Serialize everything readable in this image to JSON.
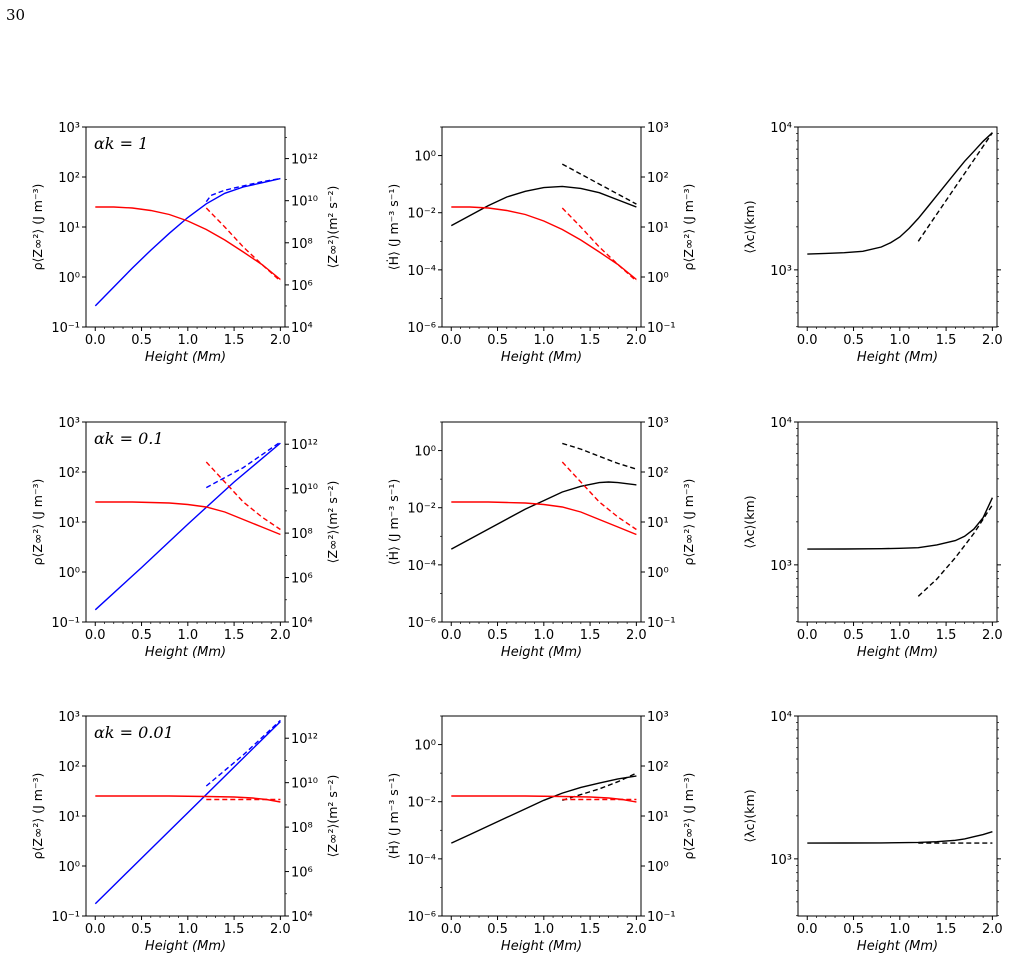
{
  "page_number": "30",
  "chart_data": [
    {
      "panel": "row1-left",
      "type": "line",
      "xlabel": "Height (Mm)",
      "ylabel": "ρ⟨Z∞²⟩ (J m⁻³)",
      "y2label": "⟨Z∞²⟩(m² s⁻²)",
      "xlim": [
        -0.1,
        2.05
      ],
      "ylim": [
        -1,
        3
      ],
      "y2lim": [
        4,
        13.5
      ],
      "log_y": true,
      "log_y2": true,
      "annotation": "αk = 1",
      "series": [
        {
          "color": "#0000ff",
          "dash": "solid",
          "axis": "right",
          "x": [
            0,
            0.2,
            0.4,
            0.6,
            0.8,
            1.0,
            1.2,
            1.4,
            1.6,
            1.8,
            2.0
          ],
          "y": [
            5.0,
            5.9,
            6.8,
            7.65,
            8.45,
            9.2,
            9.85,
            10.35,
            10.65,
            10.85,
            11.05
          ]
        },
        {
          "color": "#0000ff",
          "dash": "dashed",
          "axis": "right",
          "x": [
            1.2,
            1.25,
            1.4,
            1.6,
            1.8,
            2.0
          ],
          "y": [
            9.95,
            10.25,
            10.5,
            10.7,
            10.9,
            11.05
          ]
        },
        {
          "color": "#ff0000",
          "dash": "solid",
          "axis": "left",
          "x": [
            0,
            0.2,
            0.4,
            0.6,
            0.8,
            1.0,
            1.2,
            1.4,
            1.6,
            1.8,
            2.0
          ],
          "y": [
            1.4,
            1.4,
            1.38,
            1.33,
            1.25,
            1.12,
            0.95,
            0.74,
            0.5,
            0.25,
            -0.05
          ]
        },
        {
          "color": "#ff0000",
          "dash": "dashed",
          "axis": "left",
          "x": [
            1.2,
            1.4,
            1.6,
            1.8,
            2.0
          ],
          "y": [
            1.38,
            1.0,
            0.6,
            0.25,
            -0.08
          ]
        }
      ]
    },
    {
      "panel": "row1-mid",
      "type": "line",
      "xlabel": "Height (Mm)",
      "ylabel": "⟨Ḣ⟩ (J m⁻³ s⁻¹)",
      "y2label": "ρ⟨Z∞²⟩ (J m⁻³)",
      "xlim": [
        -0.1,
        2.05
      ],
      "ylim": [
        -6,
        1
      ],
      "y2lim": [
        -1,
        3
      ],
      "log_y": true,
      "log_y2": true,
      "series": [
        {
          "color": "#000000",
          "dash": "solid",
          "axis": "left",
          "x": [
            0,
            0.2,
            0.4,
            0.6,
            0.8,
            1.0,
            1.2,
            1.4,
            1.6,
            1.8,
            2.0
          ],
          "y": [
            -2.45,
            -2.1,
            -1.75,
            -1.45,
            -1.25,
            -1.12,
            -1.08,
            -1.15,
            -1.3,
            -1.55,
            -1.8
          ]
        },
        {
          "color": "#000000",
          "dash": "dashed",
          "axis": "left",
          "x": [
            1.2,
            1.4,
            1.6,
            1.8,
            2.0
          ],
          "y": [
            -0.3,
            -0.65,
            -1.0,
            -1.35,
            -1.7
          ]
        },
        {
          "color": "#ff0000",
          "dash": "solid",
          "axis": "right",
          "x": [
            0,
            0.2,
            0.4,
            0.6,
            0.8,
            1.0,
            1.2,
            1.4,
            1.6,
            1.8,
            2.0
          ],
          "y": [
            1.4,
            1.4,
            1.38,
            1.33,
            1.25,
            1.12,
            0.95,
            0.74,
            0.5,
            0.25,
            -0.05
          ]
        },
        {
          "color": "#ff0000",
          "dash": "dashed",
          "axis": "right",
          "x": [
            1.2,
            1.4,
            1.6,
            1.8,
            2.0
          ],
          "y": [
            1.38,
            1.0,
            0.6,
            0.25,
            -0.08
          ]
        }
      ]
    },
    {
      "panel": "row1-right",
      "type": "line",
      "xlabel": "Height (Mm)",
      "ylabel": "⟨λc⟩(km)",
      "xlim": [
        -0.1,
        2.05
      ],
      "ylim": [
        2.6,
        4
      ],
      "log_y": true,
      "series": [
        {
          "color": "#000000",
          "dash": "solid",
          "axis": "left",
          "x": [
            0,
            0.2,
            0.4,
            0.6,
            0.8,
            0.9,
            1.0,
            1.1,
            1.2,
            1.3,
            1.4,
            1.5,
            1.6,
            1.7,
            1.8,
            1.9,
            2.0
          ],
          "y": [
            3.11,
            3.115,
            3.12,
            3.13,
            3.16,
            3.19,
            3.23,
            3.29,
            3.36,
            3.44,
            3.52,
            3.6,
            3.68,
            3.76,
            3.83,
            3.9,
            3.96
          ]
        },
        {
          "color": "#000000",
          "dash": "dashed",
          "axis": "left",
          "x": [
            1.2,
            1.4,
            1.6,
            1.8,
            2.0
          ],
          "y": [
            3.2,
            3.39,
            3.58,
            3.77,
            3.96
          ]
        }
      ]
    },
    {
      "panel": "row2-left",
      "type": "line",
      "xlabel": "Height (Mm)",
      "ylabel": "ρ⟨Z∞²⟩ (J m⁻³)",
      "y2label": "⟨Z∞²⟩(m² s⁻²)",
      "xlim": [
        -0.1,
        2.05
      ],
      "ylim": [
        -1,
        3
      ],
      "y2lim": [
        4,
        13
      ],
      "log_y": true,
      "log_y2": true,
      "annotation": "αk = 0.1",
      "series": [
        {
          "color": "#0000ff",
          "dash": "solid",
          "axis": "right",
          "x": [
            0,
            0.5,
            1.0,
            1.5,
            2.0
          ],
          "y": [
            4.55,
            6.45,
            8.4,
            10.3,
            12.05
          ]
        },
        {
          "color": "#0000ff",
          "dash": "dashed",
          "axis": "right",
          "x": [
            1.2,
            1.6,
            2.0
          ],
          "y": [
            10.05,
            10.95,
            12.1
          ]
        },
        {
          "color": "#ff0000",
          "dash": "solid",
          "axis": "left",
          "x": [
            0,
            0.2,
            0.4,
            0.6,
            0.8,
            1.0,
            1.2,
            1.4,
            1.6,
            1.8,
            2.0
          ],
          "y": [
            1.4,
            1.4,
            1.4,
            1.39,
            1.38,
            1.35,
            1.3,
            1.2,
            1.05,
            0.9,
            0.75
          ]
        },
        {
          "color": "#ff0000",
          "dash": "dashed",
          "axis": "left",
          "x": [
            1.2,
            1.4,
            1.6,
            1.8,
            2.0
          ],
          "y": [
            2.2,
            1.8,
            1.4,
            1.1,
            0.85
          ]
        }
      ]
    },
    {
      "panel": "row2-mid",
      "type": "line",
      "xlabel": "Height (Mm)",
      "ylabel": "⟨Ḣ⟩ (J m⁻³ s⁻¹)",
      "y2label": "ρ⟨Z∞²⟩ (J m⁻³)",
      "xlim": [
        -0.1,
        2.05
      ],
      "ylim": [
        -6,
        1
      ],
      "y2lim": [
        -1,
        3
      ],
      "log_y": true,
      "log_y2": true,
      "series": [
        {
          "color": "#000000",
          "dash": "solid",
          "axis": "left",
          "x": [
            0,
            0.2,
            0.4,
            0.6,
            0.8,
            1.0,
            1.2,
            1.4,
            1.6,
            1.7,
            1.8,
            2.0
          ],
          "y": [
            -3.45,
            -3.1,
            -2.75,
            -2.4,
            -2.05,
            -1.75,
            -1.45,
            -1.25,
            -1.12,
            -1.1,
            -1.12,
            -1.2
          ]
        },
        {
          "color": "#000000",
          "dash": "dashed",
          "axis": "left",
          "x": [
            1.2,
            1.4,
            1.6,
            1.8,
            2.0
          ],
          "y": [
            0.25,
            0.05,
            -0.2,
            -0.45,
            -0.65
          ]
        },
        {
          "color": "#ff0000",
          "dash": "solid",
          "axis": "right",
          "x": [
            0,
            0.2,
            0.4,
            0.6,
            0.8,
            1.0,
            1.2,
            1.4,
            1.6,
            1.8,
            2.0
          ],
          "y": [
            1.4,
            1.4,
            1.4,
            1.39,
            1.38,
            1.35,
            1.3,
            1.2,
            1.05,
            0.9,
            0.75
          ]
        },
        {
          "color": "#ff0000",
          "dash": "dashed",
          "axis": "right",
          "x": [
            1.2,
            1.4,
            1.6,
            1.8,
            2.0
          ],
          "y": [
            2.2,
            1.8,
            1.4,
            1.1,
            0.85
          ]
        }
      ]
    },
    {
      "panel": "row2-right",
      "type": "line",
      "xlabel": "Height (Mm)",
      "ylabel": "⟨λc⟩(km)",
      "xlim": [
        -0.1,
        2.05
      ],
      "ylim": [
        2.6,
        4
      ],
      "log_y": true,
      "series": [
        {
          "color": "#000000",
          "dash": "solid",
          "axis": "left",
          "x": [
            0,
            0.4,
            0.8,
            1.0,
            1.2,
            1.4,
            1.6,
            1.7,
            1.8,
            1.9,
            2.0
          ],
          "y": [
            3.11,
            3.111,
            3.113,
            3.116,
            3.12,
            3.14,
            3.17,
            3.2,
            3.25,
            3.33,
            3.47
          ]
        },
        {
          "color": "#000000",
          "dash": "dashed",
          "axis": "left",
          "x": [
            1.2,
            1.4,
            1.6,
            1.8,
            2.0
          ],
          "y": [
            2.78,
            2.9,
            3.05,
            3.22,
            3.42
          ]
        }
      ]
    },
    {
      "panel": "row3-left",
      "type": "line",
      "xlabel": "Height (Mm)",
      "ylabel": "ρ⟨Z∞²⟩ (J m⁻³)",
      "y2label": "⟨Z∞²⟩(m² s⁻²)",
      "xlim": [
        -0.1,
        2.05
      ],
      "ylim": [
        -1,
        3
      ],
      "y2lim": [
        4,
        13
      ],
      "log_y": true,
      "log_y2": true,
      "annotation": "αk = 0.01",
      "series": [
        {
          "color": "#0000ff",
          "dash": "solid",
          "axis": "right",
          "x": [
            0,
            0.5,
            1.0,
            1.5,
            2.0
          ],
          "y": [
            4.55,
            6.6,
            8.65,
            10.7,
            12.75
          ]
        },
        {
          "color": "#0000ff",
          "dash": "dashed",
          "axis": "right",
          "x": [
            1.2,
            1.6,
            2.0
          ],
          "y": [
            9.85,
            11.25,
            12.8
          ]
        },
        {
          "color": "#ff0000",
          "dash": "solid",
          "axis": "left",
          "x": [
            0,
            0.4,
            0.8,
            1.2,
            1.5,
            1.7,
            1.85,
            2.0
          ],
          "y": [
            1.4,
            1.4,
            1.4,
            1.39,
            1.38,
            1.36,
            1.33,
            1.28
          ]
        },
        {
          "color": "#ff0000",
          "dash": "dashed",
          "axis": "left",
          "x": [
            1.2,
            1.4,
            1.6,
            1.8,
            2.0
          ],
          "y": [
            1.33,
            1.33,
            1.33,
            1.33,
            1.33
          ]
        }
      ]
    },
    {
      "panel": "row3-mid",
      "type": "line",
      "xlabel": "Height (Mm)",
      "ylabel": "⟨Ḣ⟩ (J m⁻³ s⁻¹)",
      "y2label": "ρ⟨Z∞²⟩ (J m⁻³)",
      "xlim": [
        -0.1,
        2.05
      ],
      "ylim": [
        -6,
        1
      ],
      "y2lim": [
        -1,
        3
      ],
      "log_y": true,
      "log_y2": true,
      "series": [
        {
          "color": "#000000",
          "dash": "solid",
          "axis": "left",
          "x": [
            0,
            0.2,
            0.4,
            0.6,
            0.8,
            1.0,
            1.2,
            1.4,
            1.6,
            1.8,
            2.0
          ],
          "y": [
            -3.45,
            -3.15,
            -2.85,
            -2.55,
            -2.25,
            -1.95,
            -1.7,
            -1.5,
            -1.35,
            -1.2,
            -1.1
          ]
        },
        {
          "color": "#000000",
          "dash": "dashed",
          "axis": "left",
          "x": [
            1.2,
            1.4,
            1.6,
            1.8,
            2.0
          ],
          "y": [
            -1.95,
            -1.75,
            -1.55,
            -1.3,
            -1.0
          ]
        },
        {
          "color": "#ff0000",
          "dash": "solid",
          "axis": "right",
          "x": [
            0,
            0.4,
            0.8,
            1.2,
            1.5,
            1.7,
            1.85,
            2.0
          ],
          "y": [
            1.4,
            1.4,
            1.4,
            1.39,
            1.38,
            1.36,
            1.33,
            1.28
          ]
        },
        {
          "color": "#ff0000",
          "dash": "dashed",
          "axis": "right",
          "x": [
            1.2,
            1.4,
            1.6,
            1.8,
            2.0
          ],
          "y": [
            1.33,
            1.33,
            1.33,
            1.33,
            1.33
          ]
        }
      ]
    },
    {
      "panel": "row3-right",
      "type": "line",
      "xlabel": "Height (Mm)",
      "ylabel": "⟨λc⟩(km)",
      "xlim": [
        -0.1,
        2.05
      ],
      "ylim": [
        2.6,
        4
      ],
      "log_y": true,
      "series": [
        {
          "color": "#000000",
          "dash": "solid",
          "axis": "left",
          "x": [
            0,
            0.4,
            0.8,
            1.2,
            1.4,
            1.6,
            1.7,
            1.8,
            1.9,
            2.0
          ],
          "y": [
            3.11,
            3.111,
            3.112,
            3.115,
            3.12,
            3.13,
            3.14,
            3.155,
            3.17,
            3.19
          ]
        },
        {
          "color": "#000000",
          "dash": "dashed",
          "axis": "left",
          "x": [
            1.2,
            1.6,
            2.0
          ],
          "y": [
            3.11,
            3.11,
            3.11
          ]
        }
      ]
    }
  ]
}
